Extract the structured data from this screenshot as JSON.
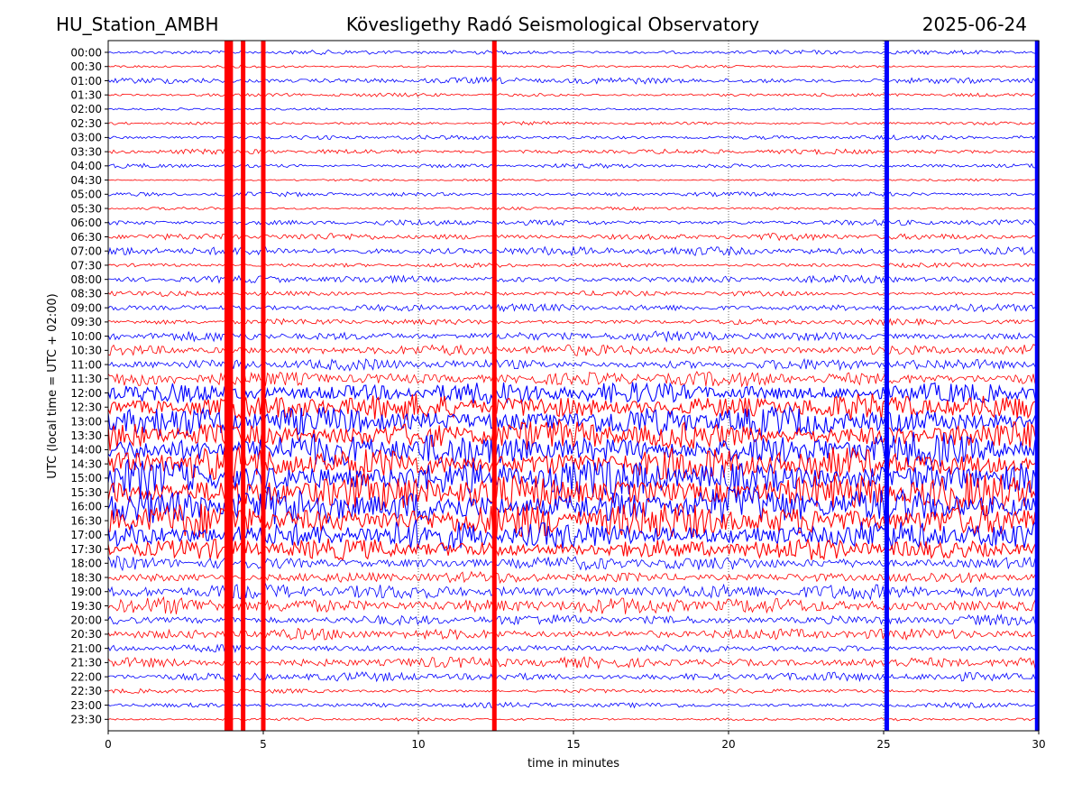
{
  "header": {
    "station": "HU_Station_AMBH",
    "observatory": "Kövesligethy Radó Seismological Observatory",
    "date": "2025-06-24"
  },
  "colors": {
    "even_hour_trace": "#0000ff",
    "half_hour_trace": "#ff0000",
    "axis": "#000000",
    "grid": "#000000"
  },
  "chart_data": {
    "type": "line",
    "title": "Kövesligethy Radó Seismological Observatory",
    "xlabel": "time in minutes",
    "ylabel": "UTC (local time = UTC + 02:00)",
    "xlim": [
      0,
      30
    ],
    "x_ticks": [
      0,
      5,
      10,
      15,
      20,
      25,
      30
    ],
    "grid": "vertical dotted lines at 5-minute ticks",
    "row_labels": [
      "00:00",
      "00:30",
      "01:00",
      "01:30",
      "02:00",
      "02:30",
      "03:00",
      "03:30",
      "04:00",
      "04:30",
      "05:00",
      "05:30",
      "06:00",
      "06:30",
      "07:00",
      "07:30",
      "08:00",
      "08:30",
      "09:00",
      "09:30",
      "10:00",
      "10:30",
      "11:00",
      "11:30",
      "12:00",
      "12:30",
      "13:00",
      "13:30",
      "14:00",
      "14:30",
      "15:00",
      "15:30",
      "16:00",
      "16:30",
      "17:00",
      "17:30",
      "18:00",
      "18:30",
      "19:00",
      "19:30",
      "20:00",
      "20:30",
      "21:00",
      "21:30",
      "22:00",
      "22:30",
      "23:00",
      "23:30"
    ],
    "row_colors": [
      "#0000ff",
      "#ff0000"
    ],
    "row_activity": [
      0.6,
      0.35,
      0.9,
      0.5,
      0.3,
      0.45,
      0.6,
      0.7,
      0.6,
      0.3,
      0.6,
      0.4,
      0.8,
      0.9,
      1.2,
      0.6,
      1.0,
      0.7,
      1.0,
      0.8,
      1.3,
      1.5,
      1.5,
      2.0,
      3.0,
      3.5,
      4.0,
      4.0,
      4.5,
      4.5,
      5.0,
      5.0,
      5.0,
      5.0,
      4.0,
      2.8,
      1.8,
      1.5,
      2.0,
      2.2,
      1.4,
      1.5,
      1.0,
      1.5,
      1.2,
      0.6,
      0.7,
      0.4
    ],
    "strong_vertical_events": [
      {
        "x_min": 3.82,
        "rows": "all",
        "color": "#ff0000"
      },
      {
        "x_min": 3.95,
        "rows": "all",
        "color": "#ff0000"
      },
      {
        "x_min": 4.35,
        "rows": "all",
        "color": "#ff0000"
      },
      {
        "x_min": 5.0,
        "rows": "all",
        "color": "#ff0000"
      },
      {
        "x_min": 12.45,
        "rows": "all",
        "color": "#ff0000"
      },
      {
        "x_min": 25.1,
        "rows": "all",
        "color": "#0000ff"
      },
      {
        "x_min": 29.95,
        "rows": "all",
        "color": "#0000ff"
      }
    ]
  }
}
